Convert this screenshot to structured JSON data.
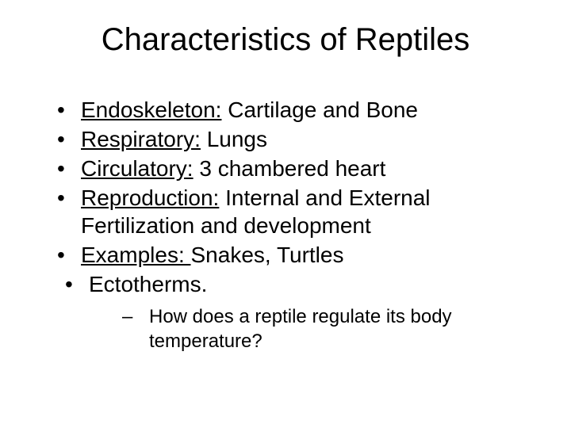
{
  "slide": {
    "title": "Characteristics of Reptiles",
    "bullets": [
      {
        "term": "Endoskeleton:",
        "value": " Cartilage and Bone"
      },
      {
        "term": "Respiratory:",
        "value": " Lungs"
      },
      {
        "term": "Circulatory:",
        "value": " 3 chambered heart"
      },
      {
        "term": "Reproduction:",
        "value": " Internal and External Fertilization and development"
      },
      {
        "term": "Examples: ",
        "value": "Snakes, Turtles"
      },
      {
        "term": "",
        "value": "Ectotherms."
      }
    ],
    "sub_bullet": "How does a reptile regulate its body temperature?",
    "colors": {
      "background": "#ffffff",
      "text": "#000000"
    },
    "typography": {
      "title_fontsize": 40,
      "bullet_fontsize": 28,
      "sub_bullet_fontsize": 24,
      "font_family": "Arial"
    }
  }
}
